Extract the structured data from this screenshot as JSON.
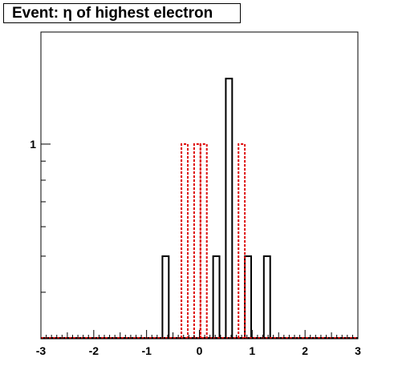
{
  "title": "Event: η of highest electron",
  "colors": {
    "series_black": "#000000",
    "series_red": "#dd0000",
    "frame": "#000000"
  },
  "chart_data": {
    "type": "bar",
    "title": "Event: η of highest electron",
    "xlabel": "",
    "ylabel": "",
    "xlim": [
      -3,
      3
    ],
    "ylim": [
      0.3,
      2.0
    ],
    "y_scale": "log",
    "x_ticks": [
      -3,
      -2,
      -1,
      0,
      1,
      2,
      3
    ],
    "x_tick_labels": [
      "-3",
      "-2",
      "-1",
      "0",
      "1",
      "2",
      "3"
    ],
    "y_ticks": [
      1
    ],
    "y_tick_labels": [
      "1"
    ],
    "bin_width": 0.12,
    "grid": false,
    "legend": "none",
    "series": [
      {
        "color": "#000000",
        "style": "solid",
        "bins": [
          {
            "x": -0.64,
            "value": 0.5
          },
          {
            "x": 0.32,
            "value": 0.5
          },
          {
            "x": 0.56,
            "value": 1.5
          },
          {
            "x": 0.92,
            "value": 0.5
          },
          {
            "x": 1.28,
            "value": 0.5
          }
        ]
      },
      {
        "color": "#dd0000",
        "style": "dashed",
        "bins": [
          {
            "x": -0.28,
            "value": 1.0
          },
          {
            "x": -0.04,
            "value": 1.0
          },
          {
            "x": 0.08,
            "value": 1.0
          },
          {
            "x": 0.8,
            "value": 1.0
          }
        ]
      }
    ]
  }
}
